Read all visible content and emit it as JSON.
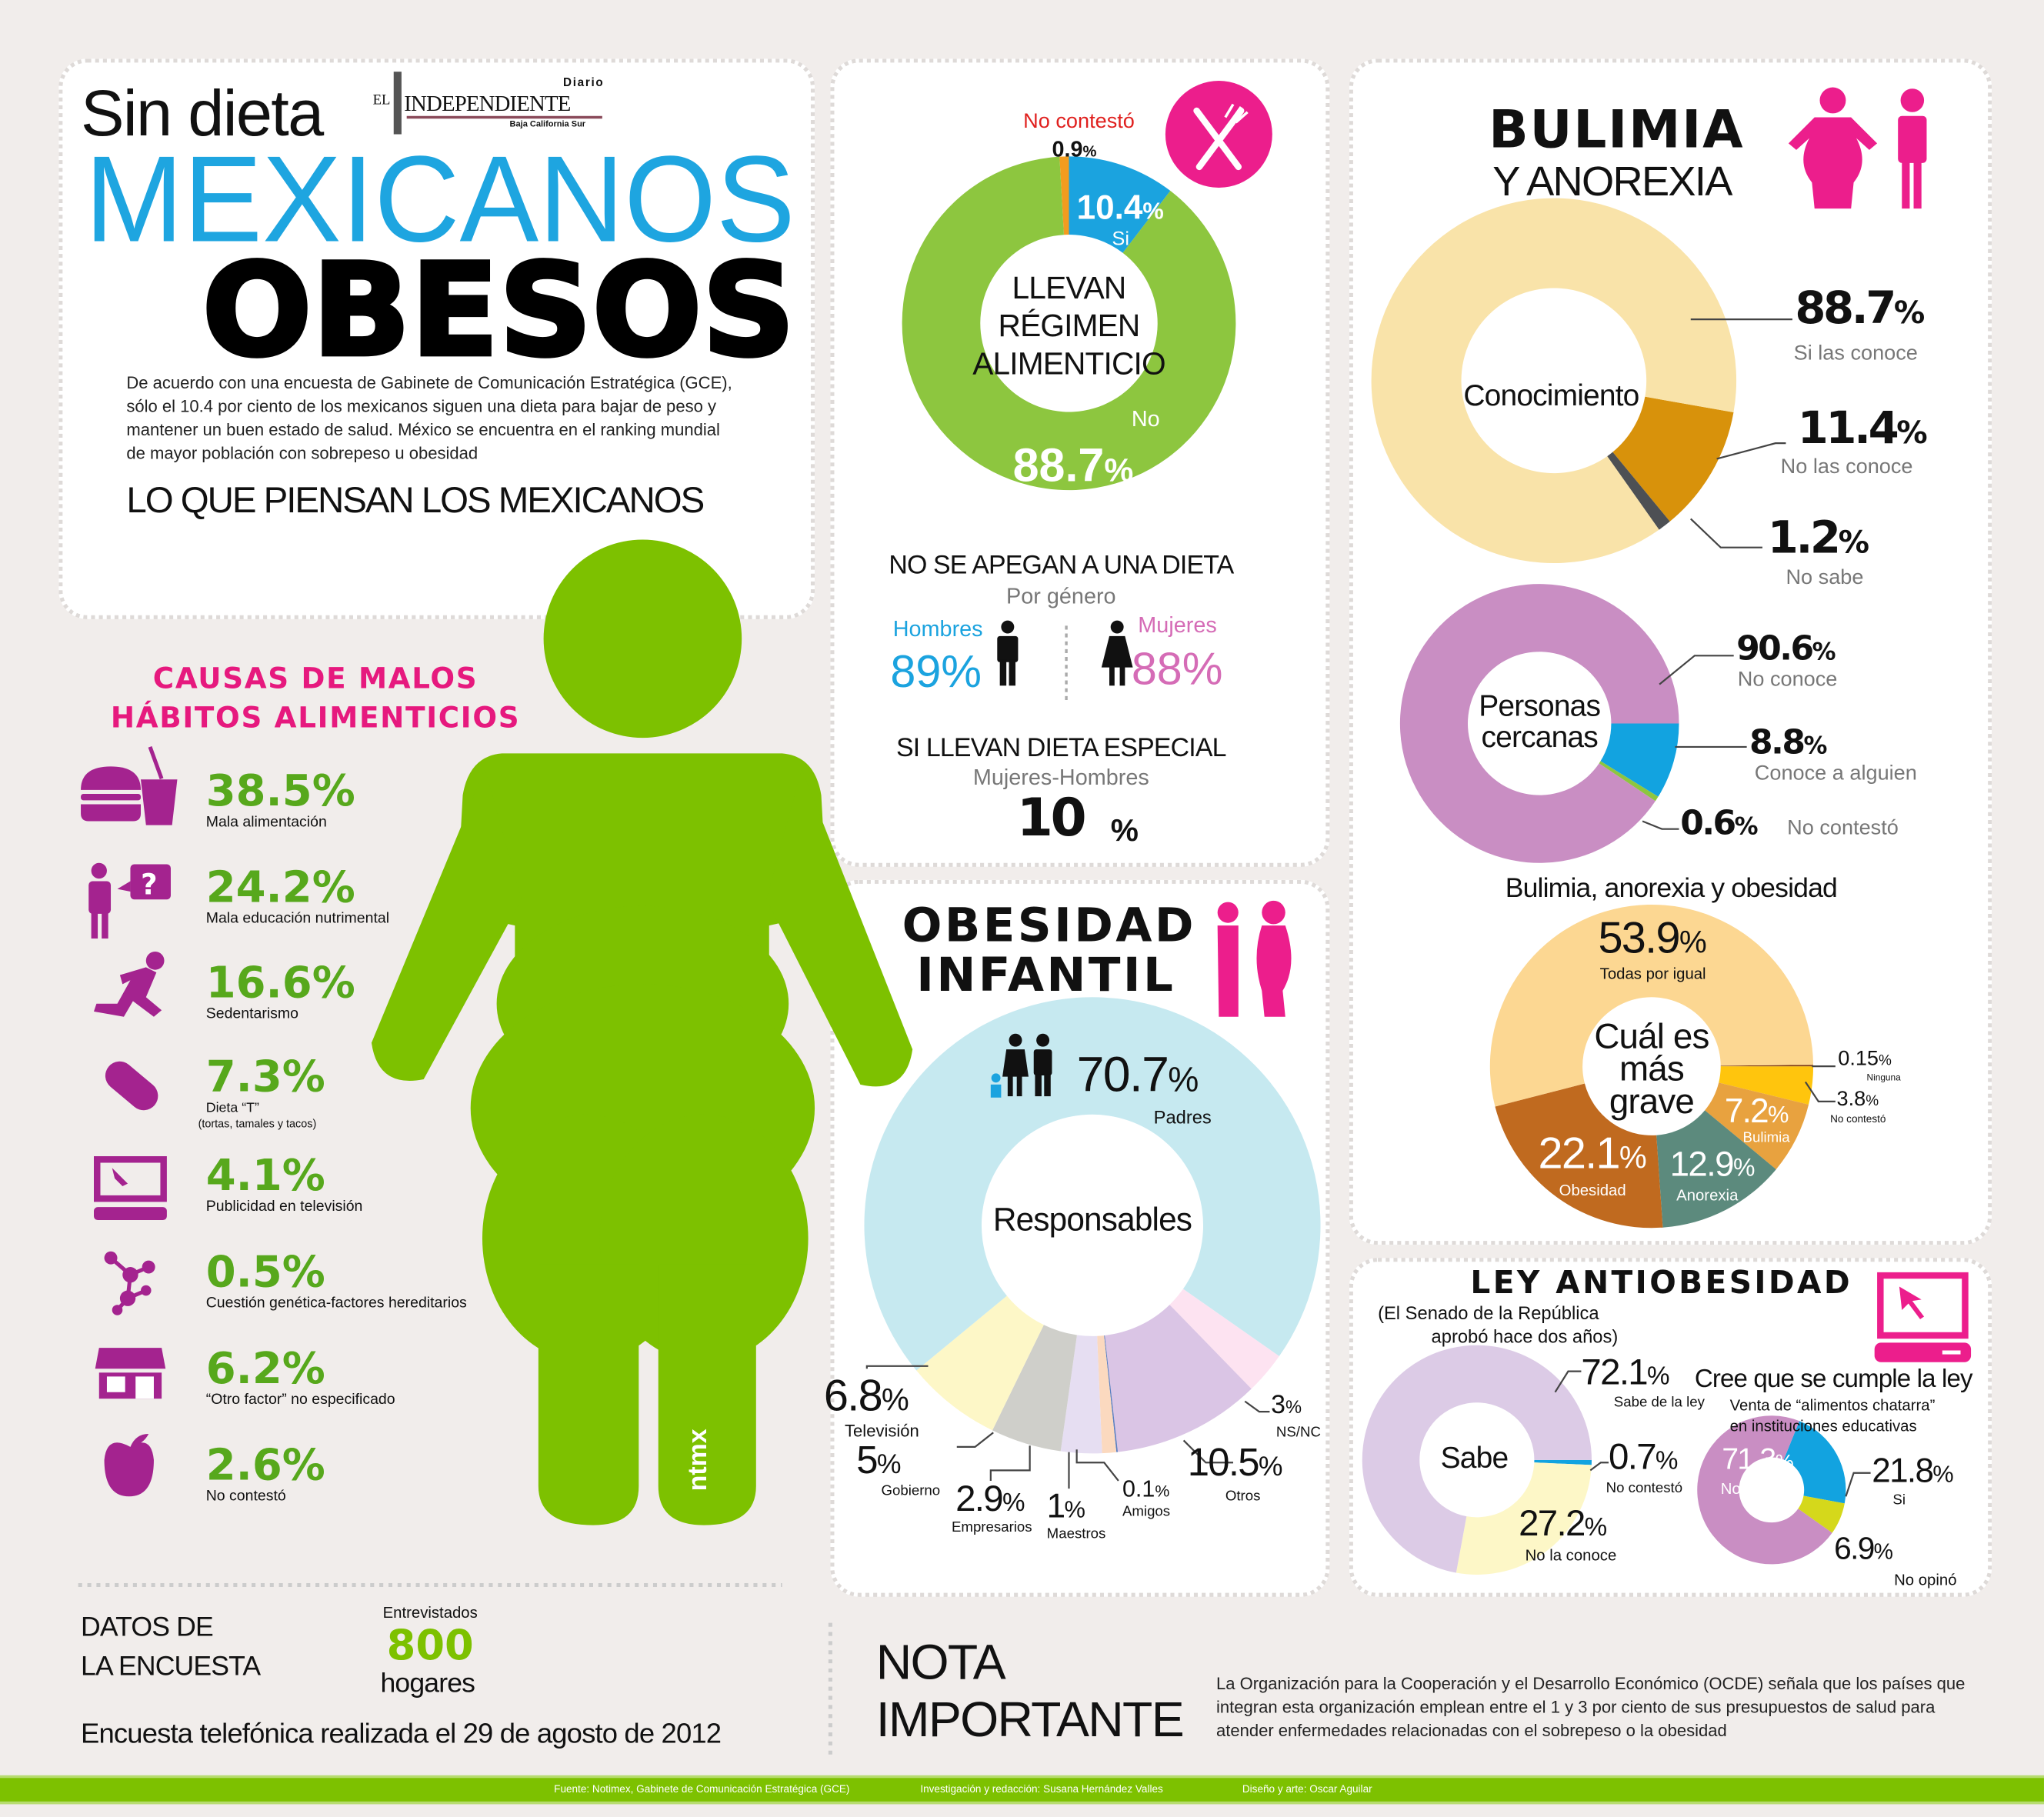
{
  "header": {
    "kicker": "Sin dieta",
    "title_line1": "MEXICANOS",
    "title_line2": "OBESOS",
    "logo": {
      "diario": "Diario",
      "el": "EL",
      "name": "INDEPENDIENTE",
      "region": "Baja California Sur"
    },
    "intro": "De acuerdo con una encuesta de Gabinete de Comunicación Estratégica (GCE), sólo el 10.4 por ciento de los mexicanos siguen una dieta para bajar de peso y mantener un buen estado de salud. México se encuentra en el ranking mundial de mayor población con sobrepeso u obesidad",
    "section_title": "LO QUE PIENSAN LOS MEXICANOS"
  },
  "causes": {
    "title_line1": "CAUSAS DE MALOS",
    "title_line2": "HÁBITOS ALIMENTICIOS",
    "items": [
      {
        "value": "38.5%",
        "label": "Mala alimentación",
        "icon": "burger-soda-icon"
      },
      {
        "value": "24.2%",
        "label": "Mala educación nutrimental",
        "icon": "person-question-icon"
      },
      {
        "value": "16.6%",
        "label": "Sedentarismo",
        "icon": "running-person-icon"
      },
      {
        "value": "7.3%",
        "label": "Dieta “T”",
        "note": "(tortas, tamales y tacos)",
        "icon": "taco-icon"
      },
      {
        "value": "4.1%",
        "label": "Publicidad en televisión",
        "icon": "monitor-icon"
      },
      {
        "value": "0.5%",
        "label": "Cuestión genética-factores hereditarios",
        "icon": "molecule-icon"
      },
      {
        "value": "6.2%",
        "label": "“Otro factor” no especificado",
        "icon": "store-icon"
      },
      {
        "value": "2.6%",
        "label": "No contestó",
        "icon": "apple-icon"
      }
    ],
    "silhouette_logo": "ntmx"
  },
  "dieta": {
    "gender_title": "NO SE APEGAN A UNA DIETA",
    "gender_sub": "Por género",
    "men_label": "Hombres",
    "men_value": "89%",
    "women_label": "Mujeres",
    "women_value": "88%",
    "special_title": "SI LLEVAN DIETA ESPECIAL",
    "special_sub": "Mujeres-Hombres",
    "special_value": "10",
    "special_unit": "%"
  },
  "infantil": {
    "title_line1": "OBESIDAD",
    "title_line2": "INFANTIL"
  },
  "bulimia": {
    "title_line1": "BULIMIA",
    "title_line2": "Y ANOREXIA"
  },
  "ley": {
    "title": "LEY ANTIOBESIDAD",
    "sub1": "(El Senado de la República",
    "sub2": "aprobó hace dos años)",
    "cumple_sub1": "Venta de “alimentos chatarra”",
    "cumple_sub2": "en instituciones educativas"
  },
  "survey": {
    "title_line1": "DATOS DE",
    "title_line2": "LA ENCUESTA",
    "interviewed_label": "Entrevistados",
    "interviewed_value": "800",
    "interviewed_unit": "hogares",
    "date_text": "Encuesta telefónica realizada el 29 de agosto de 2012"
  },
  "nota": {
    "title_line1": "NOTA",
    "title_line2": "IMPORTANTE",
    "text": "La Organización para la Cooperación y el Desarrollo Económico (OCDE) señala que los países que integran esta organización emplean entre el 1 y 3 por ciento de sus presupuestos de salud para atender enfermedades relacionadas con el sobrepeso o la obesidad"
  },
  "footer": {
    "source": "Fuente: Notimex, Gabinete de Comunicación Estratégica (GCE)",
    "research": "Investigación y redacción: Susana Hernández Valles",
    "design": "Diseño y arte: Oscar Aguilar"
  },
  "colors": {
    "green": "#7dc100",
    "blue": "#1ba3df",
    "pink": "#ec1e8c",
    "magenta": "#a4238f",
    "background": "#f1edeb"
  },
  "chart_data": [
    {
      "type": "pie",
      "center_label": "LLEVAN\nRÉGIMEN\nALIMENTICIO",
      "segments": [
        {
          "label": "No contestó",
          "value": 0.9,
          "color": "#f29c1f"
        },
        {
          "label": "Si",
          "value": 10.4,
          "color": "#1ba3df"
        },
        {
          "label": "No",
          "value": 88.7,
          "color": "#8dc63f"
        }
      ]
    },
    {
      "type": "pie",
      "center_label": "Conocimiento",
      "segments": [
        {
          "label": "No las conoce",
          "value": 11.4,
          "color": "#d8920b"
        },
        {
          "label": "No sabe",
          "value": 1.2,
          "color": "#4d5054"
        },
        {
          "label": "Si las conoce",
          "value": 88.7,
          "color": "#f9e3a9"
        }
      ]
    },
    {
      "type": "pie",
      "center_label": "Personas\ncercanas",
      "segments": [
        {
          "label": "Conoce a alguien",
          "value": 8.8,
          "color": "#12a3e0"
        },
        {
          "label": "No contestó",
          "value": 0.6,
          "color": "#8dc63f"
        },
        {
          "label": "No conoce",
          "value": 90.6,
          "color": "#c98ec3"
        }
      ]
    },
    {
      "type": "pie",
      "title": "Bulimia, anorexia y obesidad",
      "center_label": "Cuál es\nmás\ngrave",
      "segments": [
        {
          "label": "Ninguna",
          "value": 0.15,
          "color": "#7a3510"
        },
        {
          "label": "No contestó",
          "value": 3.8,
          "color": "#ffc50d"
        },
        {
          "label": "Bulimia",
          "value": 7.2,
          "color": "#e8a23f"
        },
        {
          "label": "Anorexia",
          "value": 12.9,
          "color": "#5c8a7d"
        },
        {
          "label": "Obesidad",
          "value": 22.1,
          "color": "#c06a1f"
        },
        {
          "label": "Todas por igual",
          "value": 53.9,
          "color": "#fcd792"
        }
      ]
    },
    {
      "type": "pie",
      "center_label": "Responsables",
      "segments": [
        {
          "label": "NS/NC",
          "value": 3.0,
          "color": "#fde3f1"
        },
        {
          "label": "Otros",
          "value": 10.5,
          "color": "#dac5e5"
        },
        {
          "label": "Amigos",
          "value": 0.1,
          "color": "#5b7fc0"
        },
        {
          "label": "Maestros",
          "value": 1.0,
          "color": "#fbd9bf"
        },
        {
          "label": "Empresarios",
          "value": 2.9,
          "color": "#e6def2"
        },
        {
          "label": "Gobierno",
          "value": 5.0,
          "color": "#cfcfca"
        },
        {
          "label": "Televisión",
          "value": 6.8,
          "color": "#fdf7c7"
        },
        {
          "label": "Padres",
          "value": 70.7,
          "color": "#c6e9f0"
        }
      ]
    },
    {
      "type": "pie",
      "center_label": "Sabe",
      "segments": [
        {
          "label": "No contestó",
          "value": 0.7,
          "color": "#12a3e0"
        },
        {
          "label": "No la conoce",
          "value": 27.2,
          "color": "#fdf7c7"
        },
        {
          "label": "Sabe de la ley",
          "value": 72.1,
          "color": "#dccbe6"
        }
      ]
    },
    {
      "type": "pie",
      "title": "Cree que se cumple la ley",
      "segments": [
        {
          "label": "Si",
          "value": 21.8,
          "color": "#12a3e0"
        },
        {
          "label": "No opinó",
          "value": 6.9,
          "color": "#d5d81b"
        },
        {
          "label": "No",
          "value": 71.3,
          "color": "#c98ec3"
        }
      ]
    }
  ]
}
